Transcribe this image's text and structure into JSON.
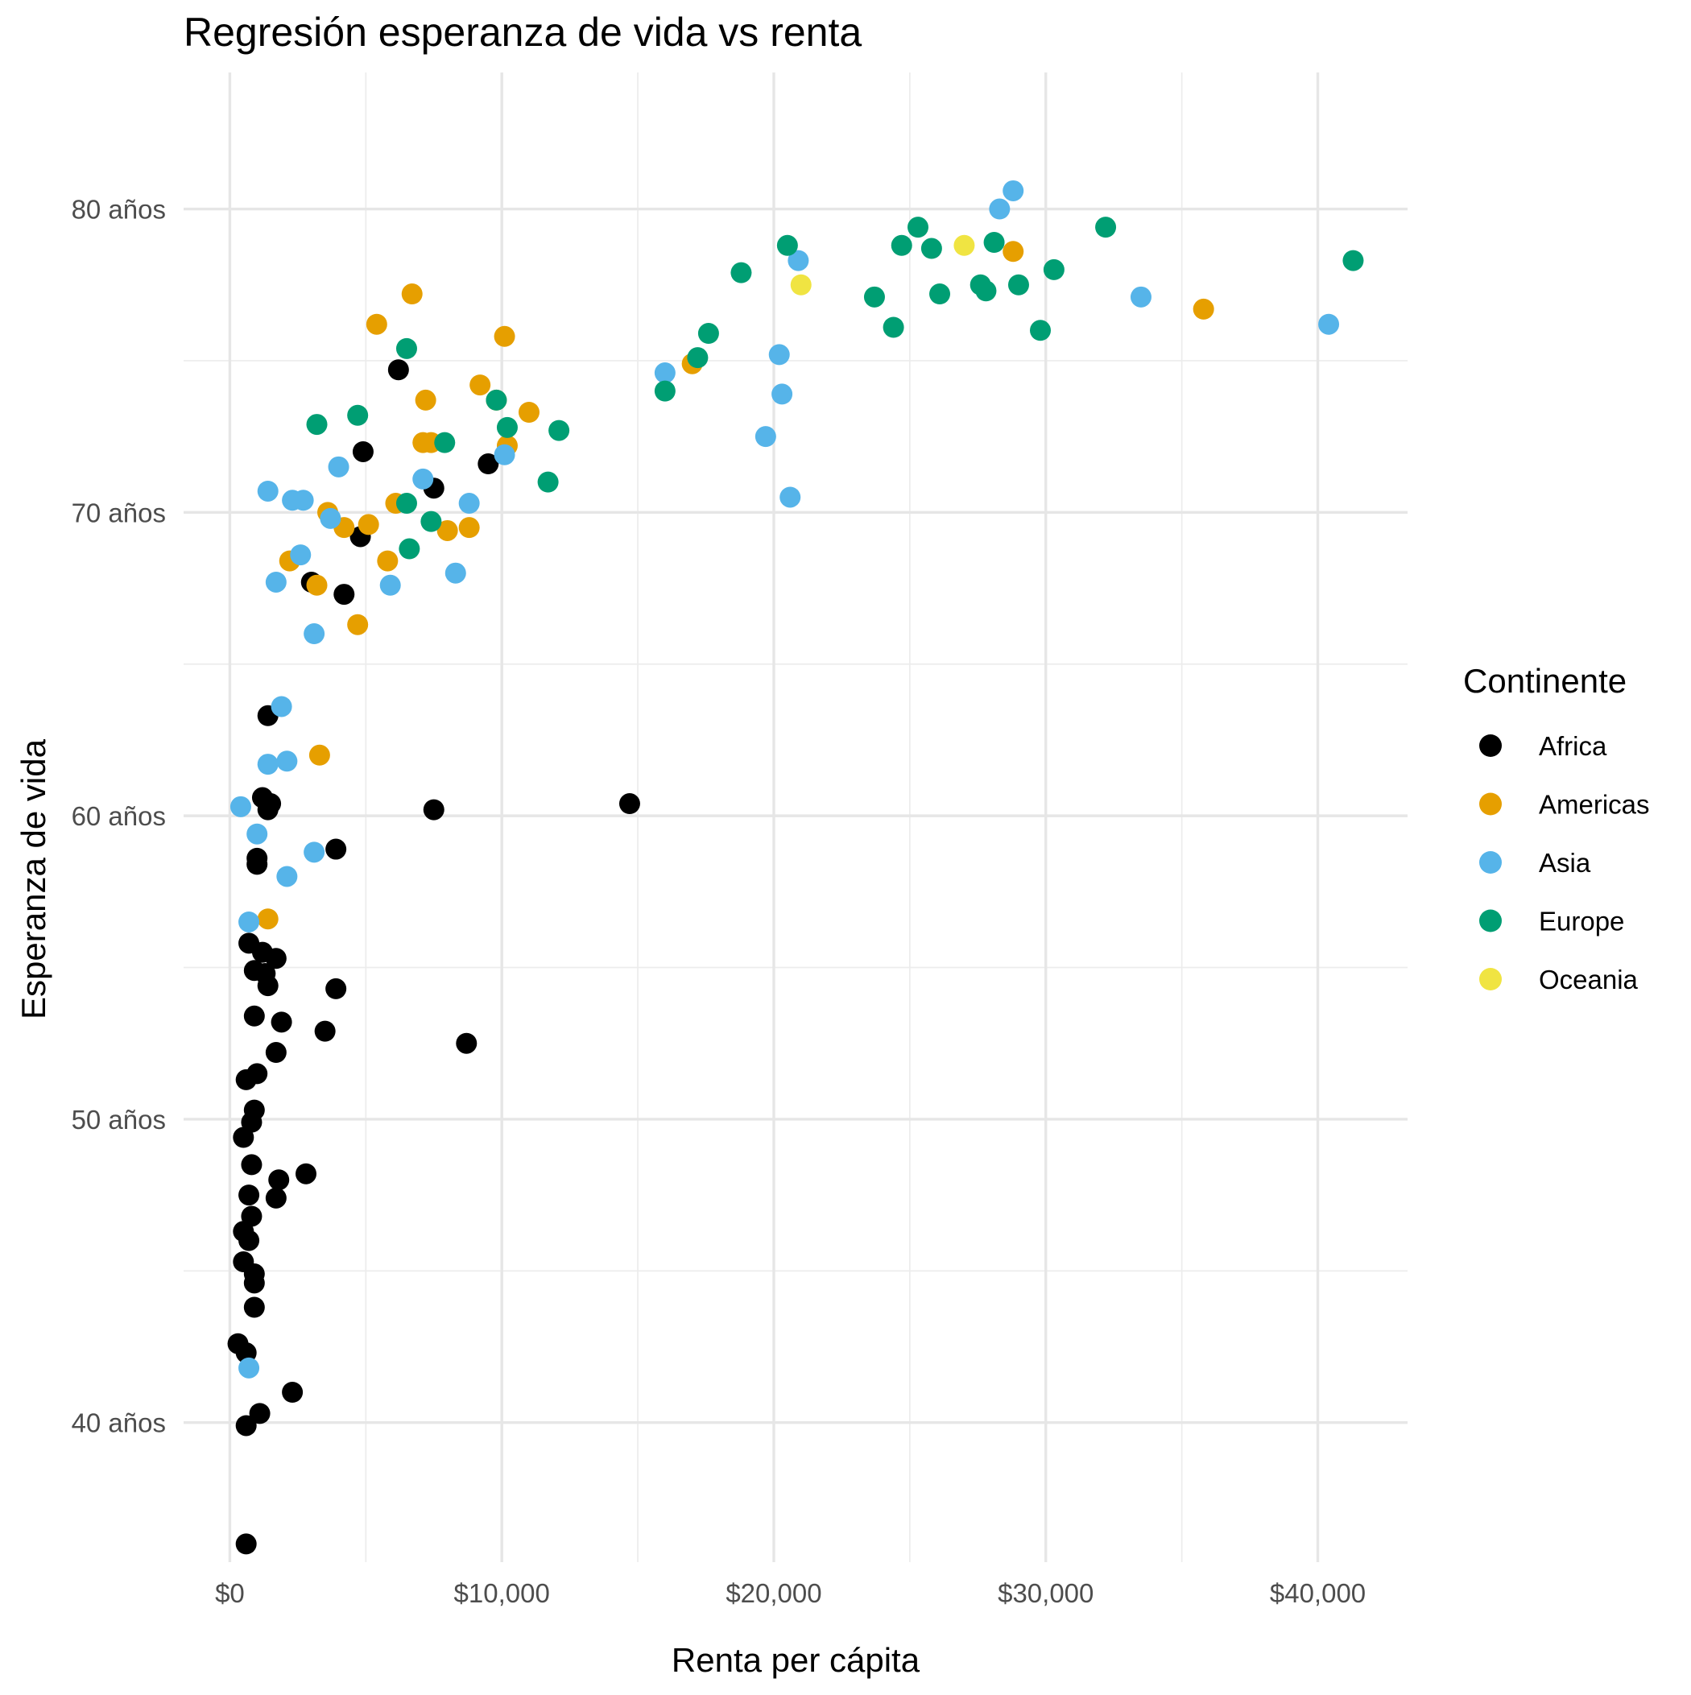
{
  "chart_data": {
    "type": "scatter",
    "title": "Regresión esperanza de vida vs renta",
    "xlabel": "Renta per cápita",
    "ylabel": "Esperanza de vida",
    "xlim": [
      -1700,
      43300
    ],
    "ylim": [
      35.4,
      84.5
    ],
    "x_ticks": [
      0,
      10000,
      20000,
      30000,
      40000
    ],
    "x_tick_labels": [
      "$0",
      "$10,000",
      "$20,000",
      "$30,000",
      "$40,000"
    ],
    "y_ticks": [
      40,
      50,
      60,
      70,
      80
    ],
    "y_tick_labels": [
      "40 años",
      "50 años",
      "60 años",
      "70 años",
      "80 años"
    ],
    "grid": true,
    "legend": {
      "title": "Continente",
      "position": "right",
      "entries": [
        "Africa",
        "Americas",
        "Asia",
        "Europe",
        "Oceania"
      ]
    },
    "colors": {
      "Africa": "#000000",
      "Americas": "#E69F00",
      "Asia": "#56B4E9",
      "Europe": "#009E73",
      "Oceania": "#F0E442"
    },
    "series": [
      {
        "name": "Africa",
        "points": [
          [
            6200,
            74.7
          ],
          [
            4900,
            72.0
          ],
          [
            7500,
            70.8
          ],
          [
            9500,
            71.6
          ],
          [
            4800,
            69.2
          ],
          [
            3000,
            67.7
          ],
          [
            4200,
            67.3
          ],
          [
            1400,
            63.3
          ],
          [
            1200,
            60.6
          ],
          [
            1500,
            60.4
          ],
          [
            1400,
            60.2
          ],
          [
            7500,
            60.2
          ],
          [
            14700,
            60.4
          ],
          [
            1000,
            58.6
          ],
          [
            1000,
            58.4
          ],
          [
            3900,
            58.9
          ],
          [
            700,
            55.8
          ],
          [
            1200,
            55.5
          ],
          [
            1700,
            55.3
          ],
          [
            900,
            54.9
          ],
          [
            1300,
            54.8
          ],
          [
            1400,
            54.4
          ],
          [
            3900,
            54.3
          ],
          [
            900,
            53.4
          ],
          [
            1900,
            53.2
          ],
          [
            3500,
            52.9
          ],
          [
            8700,
            52.5
          ],
          [
            1700,
            52.2
          ],
          [
            1000,
            51.5
          ],
          [
            600,
            51.3
          ],
          [
            900,
            50.3
          ],
          [
            800,
            49.9
          ],
          [
            500,
            49.4
          ],
          [
            800,
            48.5
          ],
          [
            1800,
            48.0
          ],
          [
            2800,
            48.2
          ],
          [
            700,
            47.5
          ],
          [
            1700,
            47.4
          ],
          [
            800,
            46.8
          ],
          [
            500,
            46.3
          ],
          [
            700,
            46.0
          ],
          [
            500,
            45.3
          ],
          [
            900,
            44.9
          ],
          [
            900,
            44.6
          ],
          [
            900,
            43.8
          ],
          [
            300,
            42.6
          ],
          [
            600,
            42.3
          ],
          [
            2300,
            41.0
          ],
          [
            1100,
            40.3
          ],
          [
            600,
            39.9
          ],
          [
            600,
            36.0
          ]
        ]
      },
      {
        "name": "Americas",
        "points": [
          [
            6700,
            77.2
          ],
          [
            5400,
            76.2
          ],
          [
            10100,
            75.8
          ],
          [
            17000,
            74.9
          ],
          [
            7200,
            73.7
          ],
          [
            9200,
            74.2
          ],
          [
            9800,
            73.7
          ],
          [
            11000,
            73.3
          ],
          [
            7100,
            72.3
          ],
          [
            7400,
            72.3
          ],
          [
            10200,
            72.2
          ],
          [
            28800,
            78.6
          ],
          [
            35800,
            76.7
          ],
          [
            3600,
            70.0
          ],
          [
            6100,
            70.3
          ],
          [
            5100,
            69.6
          ],
          [
            4200,
            69.5
          ],
          [
            8000,
            69.4
          ],
          [
            8800,
            69.5
          ],
          [
            2200,
            68.4
          ],
          [
            5800,
            68.4
          ],
          [
            3200,
            67.6
          ],
          [
            4700,
            66.3
          ],
          [
            3300,
            62.0
          ],
          [
            1400,
            56.6
          ]
        ]
      },
      {
        "name": "Asia",
        "points": [
          [
            28800,
            80.6
          ],
          [
            28300,
            80.0
          ],
          [
            20900,
            78.3
          ],
          [
            33500,
            77.1
          ],
          [
            40400,
            76.2
          ],
          [
            16000,
            74.6
          ],
          [
            20200,
            75.2
          ],
          [
            20300,
            73.9
          ],
          [
            19700,
            72.5
          ],
          [
            20600,
            70.5
          ],
          [
            10100,
            71.9
          ],
          [
            7100,
            71.1
          ],
          [
            4000,
            71.5
          ],
          [
            1400,
            70.7
          ],
          [
            2300,
            70.4
          ],
          [
            2700,
            70.4
          ],
          [
            8800,
            70.3
          ],
          [
            3700,
            69.8
          ],
          [
            2600,
            68.6
          ],
          [
            8300,
            68.0
          ],
          [
            1700,
            67.7
          ],
          [
            5900,
            67.6
          ],
          [
            3100,
            66.0
          ],
          [
            1900,
            63.6
          ],
          [
            1400,
            61.7
          ],
          [
            2100,
            61.8
          ],
          [
            400,
            60.3
          ],
          [
            1000,
            59.4
          ],
          [
            3100,
            58.8
          ],
          [
            2100,
            58.0
          ],
          [
            700,
            56.5
          ],
          [
            700,
            41.8
          ]
        ]
      },
      {
        "name": "Europe",
        "points": [
          [
            32200,
            79.4
          ],
          [
            25300,
            79.4
          ],
          [
            20500,
            78.8
          ],
          [
            24700,
            78.8
          ],
          [
            25800,
            78.7
          ],
          [
            28100,
            78.9
          ],
          [
            41300,
            78.3
          ],
          [
            30300,
            78.0
          ],
          [
            18800,
            77.9
          ],
          [
            23700,
            77.1
          ],
          [
            26100,
            77.2
          ],
          [
            27600,
            77.5
          ],
          [
            27800,
            77.3
          ],
          [
            29000,
            77.5
          ],
          [
            24400,
            76.1
          ],
          [
            29800,
            76.0
          ],
          [
            17600,
            75.9
          ],
          [
            17200,
            75.1
          ],
          [
            6500,
            75.4
          ],
          [
            16000,
            74.0
          ],
          [
            4700,
            73.2
          ],
          [
            3200,
            72.9
          ],
          [
            9800,
            73.7
          ],
          [
            10200,
            72.8
          ],
          [
            12100,
            72.7
          ],
          [
            7900,
            72.3
          ],
          [
            11700,
            71.0
          ],
          [
            6500,
            70.3
          ],
          [
            7400,
            69.7
          ],
          [
            6600,
            68.8
          ]
        ]
      },
      {
        "name": "Oceania",
        "points": [
          [
            27000,
            78.8
          ],
          [
            21000,
            77.5
          ]
        ]
      }
    ]
  }
}
